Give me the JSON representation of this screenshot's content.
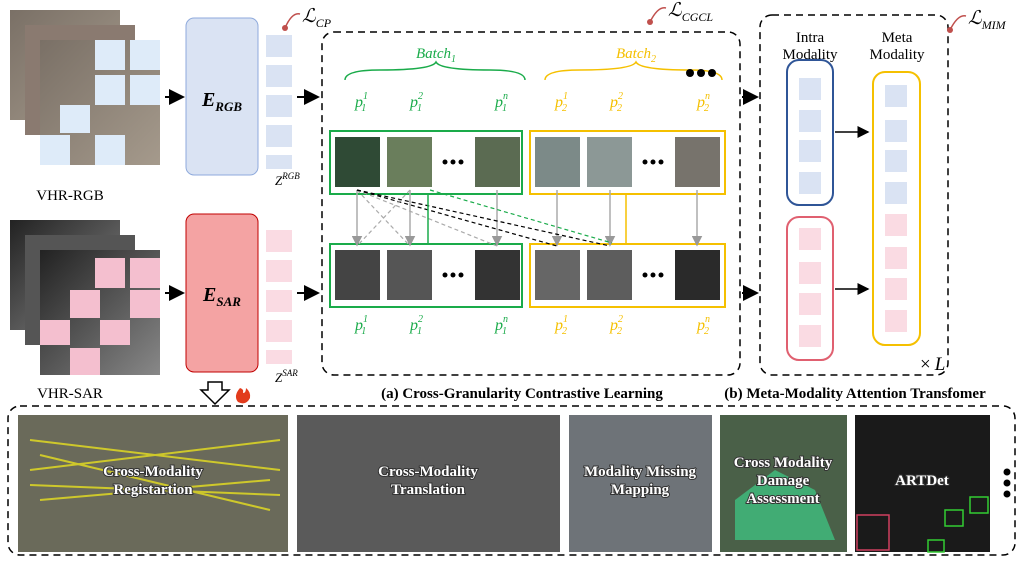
{
  "inputs": {
    "rgb_label": "VHR-RGB",
    "sar_label": "VHR-SAR"
  },
  "encoders": {
    "rgb": {
      "base": "E",
      "sub": "RGB"
    },
    "sar": {
      "base": "E",
      "sub": "SAR"
    }
  },
  "tokens": {
    "rgb": {
      "base": "Z",
      "sup": "RGB"
    },
    "sar": {
      "base": "Z",
      "sup": "SAR"
    }
  },
  "losses": {
    "cp": {
      "base": "ℒ",
      "sub": "CP"
    },
    "cgcl": {
      "base": "ℒ",
      "sub": "CGCL"
    },
    "mim": {
      "base": "ℒ",
      "sub": "MIM"
    }
  },
  "batches": [
    {
      "label": {
        "base": "Batch",
        "sub": "1"
      },
      "items": [
        {
          "base": "p",
          "sub": "1",
          "sup": "1"
        },
        {
          "base": "p",
          "sub": "1",
          "sup": "2"
        },
        {
          "base": "p",
          "sub": "1",
          "sup": "n"
        }
      ]
    },
    {
      "label": {
        "base": "Batch",
        "sub": "2"
      },
      "items": [
        {
          "base": "p",
          "sub": "2",
          "sup": "1"
        },
        {
          "base": "p",
          "sub": "2",
          "sup": "2"
        },
        {
          "base": "p",
          "sub": "2",
          "sup": "n"
        }
      ]
    }
  ],
  "meta": {
    "intra": [
      "Intra",
      "Modality"
    ],
    "meta": [
      "Meta",
      "Modality"
    ],
    "repeat": {
      "base": "×",
      "sub": "L"
    }
  },
  "captions": {
    "a": "(a) Cross-Granularity Contrastive Learning",
    "b": "(b) Meta-Modality Attention Transfomer"
  },
  "applications": [
    [
      "Cross-Modality",
      "Registartion"
    ],
    [
      "Cross-Modality",
      "Translation"
    ],
    [
      "Modality Missing",
      "Mapping"
    ],
    [
      "Cross Modality",
      "Damage",
      "Assessment"
    ],
    [
      "ARTDet"
    ]
  ]
}
